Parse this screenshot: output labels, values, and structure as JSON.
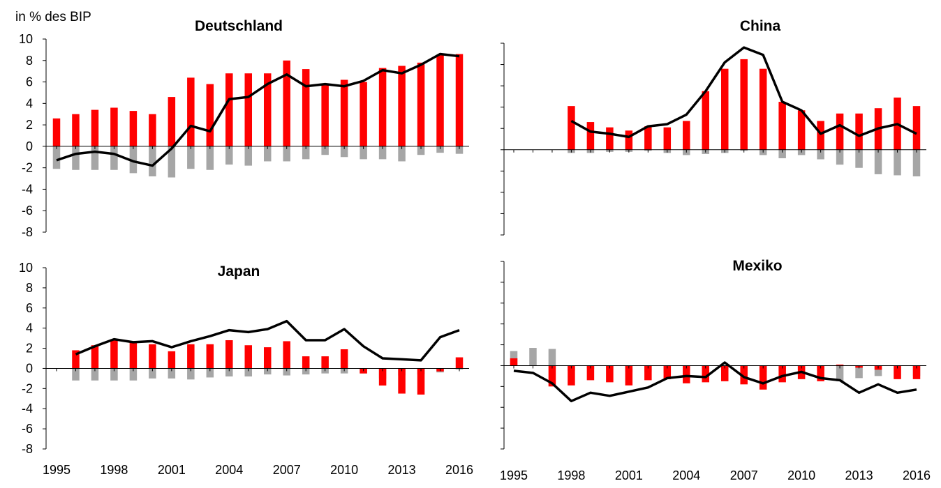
{
  "page": {
    "unit_label": "in % des BIP"
  },
  "colors": {
    "positive_component": "#ff0000",
    "negative_component": "#a6a6a6",
    "line": "#000000",
    "axis": "#000000"
  },
  "chart_data": [
    {
      "type": "bar",
      "title": "Deutschland",
      "ylim": [
        -8,
        10
      ],
      "yticks": [
        "10",
        "8",
        "6",
        "4",
        "2",
        "0",
        "-2",
        "-4",
        "-6",
        "-8"
      ],
      "xtick_labels": [
        "1995",
        "1998",
        "2001",
        "2004",
        "2007",
        "2010",
        "2013",
        "2016"
      ],
      "show_y_tick_labels": true,
      "show_x_tick_labels": false,
      "years": [
        1995,
        1996,
        1997,
        1998,
        1999,
        2000,
        2001,
        2002,
        2003,
        2004,
        2005,
        2006,
        2007,
        2008,
        2009,
        2010,
        2011,
        2012,
        2013,
        2014,
        2015,
        2016
      ],
      "red": [
        2.6,
        3.0,
        3.4,
        3.6,
        3.3,
        3.0,
        4.6,
        6.4,
        5.8,
        6.8,
        6.8,
        6.8,
        8.0,
        7.2,
        5.8,
        6.2,
        6.0,
        7.3,
        7.5,
        7.8,
        8.5,
        8.6
      ],
      "gray": [
        -2.1,
        -2.2,
        -2.2,
        -2.2,
        -2.5,
        -2.8,
        -2.9,
        -2.1,
        -2.2,
        -1.7,
        -1.8,
        -1.4,
        -1.4,
        -1.2,
        -0.8,
        -1.0,
        -1.2,
        -1.2,
        -1.4,
        -0.8,
        -0.6,
        -0.7
      ],
      "line": [
        -1.3,
        -0.7,
        -0.5,
        -0.7,
        -1.4,
        -1.8,
        -0.2,
        1.9,
        1.4,
        4.4,
        4.6,
        5.8,
        6.7,
        5.6,
        5.8,
        5.6,
        6.1,
        7.1,
        6.8,
        7.6,
        8.6,
        8.4
      ]
    },
    {
      "type": "bar",
      "title": "China",
      "ylim": [
        -8,
        10
      ],
      "yticks": [
        "10",
        "8",
        "6",
        "4",
        "2",
        "0",
        "-2",
        "-4",
        "-6",
        "-8"
      ],
      "xtick_labels": [
        "1995",
        "1998",
        "2001",
        "2004",
        "2007",
        "2010",
        "2013",
        "2016"
      ],
      "show_y_tick_labels": false,
      "show_x_tick_labels": false,
      "years": [
        1998,
        1999,
        2000,
        2001,
        2002,
        2003,
        2004,
        2005,
        2006,
        2007,
        2008,
        2009,
        2010,
        2011,
        2012,
        2013,
        2014,
        2015,
        2016
      ],
      "red": [
        4.1,
        2.6,
        2.1,
        1.8,
        2.2,
        2.1,
        2.7,
        5.5,
        7.6,
        8.5,
        7.6,
        4.5,
        3.7,
        2.7,
        3.4,
        3.4,
        3.9,
        4.9,
        4.1
      ],
      "gray": [
        -0.3,
        -0.3,
        -0.2,
        -0.2,
        -0.1,
        -0.3,
        -0.5,
        -0.4,
        -0.3,
        -0.1,
        -0.5,
        -0.8,
        -0.5,
        -0.9,
        -1.4,
        -1.7,
        -2.3,
        -2.4,
        -2.5
      ],
      "line": [
        2.7,
        1.7,
        1.5,
        1.2,
        2.2,
        2.4,
        3.3,
        5.5,
        8.2,
        9.6,
        8.9,
        4.5,
        3.7,
        1.5,
        2.3,
        1.3,
        2.0,
        2.4,
        1.5
      ]
    },
    {
      "type": "bar",
      "title": "Japan",
      "ylim": [
        -8,
        10
      ],
      "yticks": [
        "10",
        "8",
        "6",
        "4",
        "2",
        "0",
        "-2",
        "-4",
        "-6",
        "-8"
      ],
      "xtick_labels": [
        "1995",
        "1998",
        "2001",
        "2004",
        "2007",
        "2010",
        "2013",
        "2016"
      ],
      "show_y_tick_labels": true,
      "show_x_tick_labels": true,
      "years": [
        1996,
        1997,
        1998,
        1999,
        2000,
        2001,
        2002,
        2003,
        2004,
        2005,
        2006,
        2007,
        2008,
        2009,
        2010,
        2011,
        2012,
        2013,
        2014,
        2015,
        2016
      ],
      "red": [
        1.8,
        2.3,
        2.9,
        2.6,
        2.4,
        1.7,
        2.4,
        2.4,
        2.8,
        2.3,
        2.1,
        2.7,
        1.2,
        1.2,
        1.9,
        -0.5,
        -1.7,
        -2.5,
        -2.6,
        -0.3,
        1.1
      ],
      "gray": [
        -1.2,
        -1.2,
        -1.2,
        -1.2,
        -1.0,
        -1.0,
        -1.1,
        -0.9,
        -0.8,
        -0.8,
        -0.6,
        -0.7,
        -0.6,
        -0.5,
        -0.5,
        -0.5,
        -1.0,
        -0.7,
        -0.6,
        -0.4,
        -0.1
      ],
      "line": [
        1.4,
        2.2,
        2.9,
        2.6,
        2.7,
        2.1,
        2.7,
        3.2,
        3.8,
        3.6,
        3.9,
        4.7,
        2.8,
        2.8,
        3.9,
        2.2,
        1.0,
        0.9,
        0.8,
        3.1,
        3.8
      ]
    },
    {
      "type": "bar",
      "title": "Mexiko",
      "ylim": [
        -8,
        10
      ],
      "yticks": [
        "10",
        "8",
        "6",
        "4",
        "2",
        "0",
        "-2",
        "-4",
        "-6",
        "-8"
      ],
      "xtick_labels": [
        "1995",
        "1998",
        "2001",
        "2004",
        "2007",
        "2010",
        "2013",
        "2016"
      ],
      "show_y_tick_labels": false,
      "show_x_tick_labels": true,
      "years": [
        1995,
        1996,
        1997,
        1998,
        1999,
        2000,
        2001,
        2002,
        2003,
        2004,
        2005,
        2006,
        2007,
        2008,
        2009,
        2010,
        2011,
        2012,
        2013,
        2014,
        2015,
        2016
      ],
      "red": [
        0.7,
        0,
        -2.0,
        -1.9,
        -1.4,
        -1.6,
        -1.9,
        -1.4,
        -1.3,
        -1.7,
        -1.6,
        -1.5,
        -1.8,
        -2.3,
        -1.6,
        -1.3,
        -1.5,
        0.1,
        -0.2,
        -0.4,
        -1.3,
        -1.3
      ],
      "gray": [
        1.4,
        1.7,
        1.6,
        -0.5,
        -0.3,
        -0.4,
        -0.6,
        -0.6,
        -0.7,
        -0.6,
        -0.5,
        -0.5,
        -0.4,
        -0.6,
        -0.5,
        -0.4,
        -0.5,
        -1.5,
        -1.2,
        -1.0,
        -1.2,
        -1.0
      ],
      "line": [
        -0.5,
        -0.7,
        -1.7,
        -3.4,
        -2.6,
        -2.9,
        -2.5,
        -2.1,
        -1.2,
        -1.0,
        -1.1,
        0.3,
        -1.1,
        -1.7,
        -1.0,
        -0.6,
        -1.2,
        -1.4,
        -2.6,
        -1.8,
        -2.6,
        -2.3
      ]
    }
  ]
}
